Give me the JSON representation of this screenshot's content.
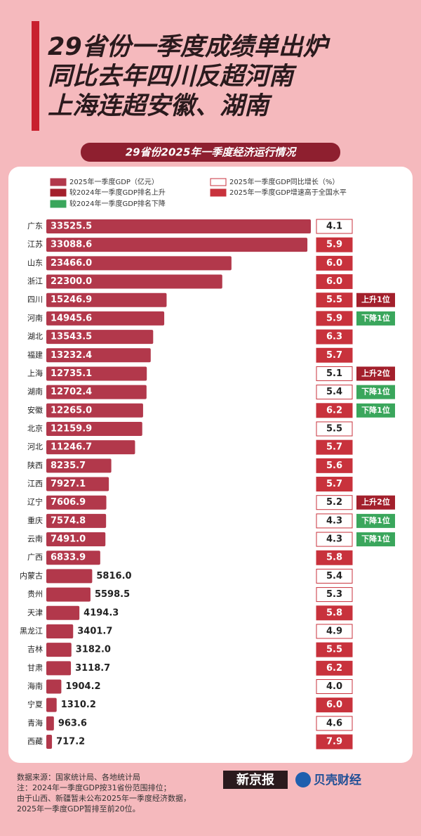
{
  "header": {
    "title_lines": [
      "29省份一季度成绩单出炉",
      "同比去年四川反超河南",
      "上海连超安徽、湖南"
    ]
  },
  "chart_data": {
    "type": "bar",
    "title": "29省份2025年一季度经济运行情况",
    "categories": [
      "广东",
      "江苏",
      "山东",
      "浙江",
      "四川",
      "河南",
      "湖北",
      "福建",
      "上海",
      "湖南",
      "安徽",
      "北京",
      "河北",
      "陕西",
      "江西",
      "辽宁",
      "重庆",
      "云南",
      "广西",
      "内蒙古",
      "贵州",
      "天津",
      "黑龙江",
      "吉林",
      "甘肃",
      "海南",
      "宁夏",
      "青海",
      "西藏"
    ],
    "series": [
      {
        "name": "2025年一季度GDP（亿元）",
        "color": "#b2384b",
        "values": [
          33525.5,
          33088.6,
          23466.0,
          22300.0,
          15246.9,
          14945.6,
          13543.5,
          13232.4,
          12735.1,
          12702.4,
          12265.0,
          12159.9,
          11246.7,
          8235.7,
          7927.1,
          7606.9,
          7574.8,
          7491.0,
          6833.9,
          5816.0,
          5598.5,
          4194.3,
          3401.7,
          3182.0,
          3118.7,
          1904.2,
          1310.2,
          963.6,
          717.2
        ],
        "value_labels": [
          "33525.5",
          "33088.6",
          "23466.0",
          "22300.0",
          "15246.9",
          "14945.6",
          "13543.5",
          "13232.4",
          "12735.1",
          "12702.4",
          "12265.0",
          "12159.9",
          "11246.7",
          "8235.7",
          "7927.1",
          "7606.9",
          "7574.8",
          "7491.0",
          "6833.9",
          "5816.0",
          "5598.5",
          "4194.3",
          "3401.7",
          "3182.0",
          "3118.7",
          "1904.2",
          "1310.2",
          "963.6",
          "717.2"
        ]
      },
      {
        "name": "2025年一季度GDP同比增长（%）",
        "color": "#c8323c",
        "values": [
          4.1,
          5.9,
          6.0,
          6.0,
          5.5,
          5.9,
          6.3,
          5.7,
          5.1,
          5.4,
          6.2,
          5.5,
          5.7,
          5.6,
          5.7,
          5.2,
          4.3,
          4.3,
          5.8,
          5.4,
          5.3,
          5.8,
          4.9,
          5.5,
          6.2,
          4.0,
          6.0,
          4.6,
          7.9
        ],
        "value_labels": [
          "4.1",
          "5.9",
          "6.0",
          "6.0",
          "5.5",
          "5.9",
          "6.3",
          "5.7",
          "5.1",
          "5.4",
          "6.2",
          "5.5",
          "5.7",
          "5.6",
          "5.7",
          "5.2",
          "4.3",
          "4.3",
          "5.8",
          "5.4",
          "5.3",
          "5.8",
          "4.9",
          "5.5",
          "6.2",
          "4.0",
          "6.0",
          "4.6",
          "7.9"
        ]
      }
    ],
    "above_national": {
      "name": "2025年一季度GDP增速高于全国水平",
      "color": "#c8323c",
      "flags": [
        false,
        true,
        true,
        true,
        true,
        true,
        true,
        true,
        false,
        false,
        true,
        false,
        true,
        true,
        true,
        false,
        false,
        false,
        true,
        false,
        false,
        true,
        false,
        true,
        true,
        false,
        true,
        false,
        true
      ]
    },
    "rank_changes": [
      {
        "name": "较2024年一季度GDP排名上升",
        "color": "#a3202c",
        "labels": [
          null,
          null,
          null,
          null,
          "上升1位",
          null,
          null,
          null,
          "上升2位",
          null,
          null,
          null,
          null,
          null,
          null,
          "上升2位",
          null,
          null,
          null,
          null,
          null,
          null,
          null,
          null,
          null,
          null,
          null,
          null,
          null
        ]
      },
      {
        "name": "较2024年一季度GDP排名下降",
        "color": "#3aa65c",
        "labels": [
          null,
          null,
          null,
          null,
          null,
          "下降1位",
          null,
          null,
          null,
          "下降1位",
          "下降1位",
          null,
          null,
          null,
          null,
          null,
          "下降1位",
          "下降1位",
          null,
          null,
          null,
          null,
          null,
          null,
          null,
          null,
          null,
          null,
          null
        ]
      }
    ]
  },
  "footer": {
    "lines": [
      "数据来源：国家统计局、各地统计局",
      "注：2024年一季度GDP按31省份范围排位；",
      "由于山西、新疆暂未公布2025年一季度经济数据，",
      "2025年一季度GDP暂排至前20位。"
    ],
    "logos": [
      "新京报",
      "贝壳财经"
    ]
  }
}
